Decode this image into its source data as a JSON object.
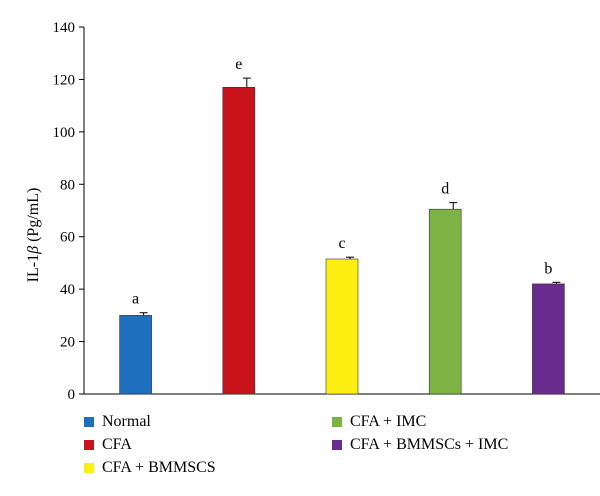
{
  "chart_data": {
    "type": "bar",
    "categories": [
      "Normal",
      "CFA",
      "CFA + BMMSCS",
      "CFA + IMC",
      "CFA + BMMSCs + IMC"
    ],
    "values": [
      30,
      117,
      51.5,
      70.5,
      42
    ],
    "errors": [
      1,
      3.5,
      0.7,
      2.5,
      0.6
    ],
    "significance_labels": [
      "a",
      "e",
      "c",
      "d",
      "b"
    ],
    "colors": [
      "#1f6fbf",
      "#c8141a",
      "#ffee11",
      "#7cb342",
      "#6a2c8c"
    ],
    "ylabel_prefix": "IL-1",
    "ylabel_symbol": "β",
    "ylabel_suffix": " (Pg/mL)",
    "ylim": [
      0,
      140
    ],
    "yticks": [
      0,
      20,
      40,
      60,
      80,
      100,
      120,
      140
    ],
    "grid": false,
    "legend_position": "bottom"
  }
}
